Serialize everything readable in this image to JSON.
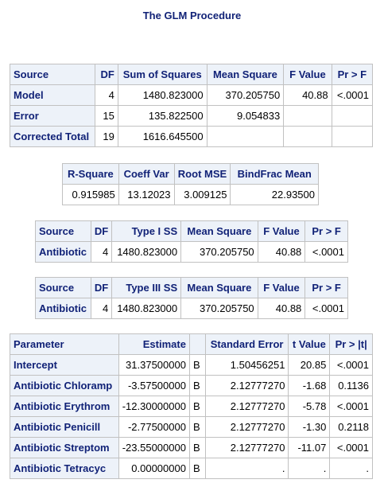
{
  "title": "The GLM Procedure",
  "anova": {
    "headers": [
      "Source",
      "DF",
      "Sum of Squares",
      "Mean Square",
      "F Value",
      "Pr > F"
    ],
    "rows": [
      {
        "source": "Model",
        "df": "4",
        "ss": "1480.823000",
        "ms": "370.205750",
        "f": "40.88",
        "p": "<.0001"
      },
      {
        "source": "Error",
        "df": "15",
        "ss": "135.822500",
        "ms": "9.054833",
        "f": "",
        "p": ""
      },
      {
        "source": "Corrected Total",
        "df": "19",
        "ss": "1616.645500",
        "ms": "",
        "f": "",
        "p": ""
      }
    ]
  },
  "fit": {
    "headers": [
      "R-Square",
      "Coeff Var",
      "Root MSE",
      "BindFrac Mean"
    ],
    "values": [
      "0.915985",
      "13.12023",
      "3.009125",
      "22.93500"
    ]
  },
  "type1": {
    "headers": [
      "Source",
      "DF",
      "Type I SS",
      "Mean Square",
      "F Value",
      "Pr > F"
    ],
    "row": {
      "source": "Antibiotic",
      "df": "4",
      "ss": "1480.823000",
      "ms": "370.205750",
      "f": "40.88",
      "p": "<.0001"
    }
  },
  "type3": {
    "headers": [
      "Source",
      "DF",
      "Type III SS",
      "Mean Square",
      "F Value",
      "Pr > F"
    ],
    "row": {
      "source": "Antibiotic",
      "df": "4",
      "ss": "1480.823000",
      "ms": "370.205750",
      "f": "40.88",
      "p": "<.0001"
    }
  },
  "params": {
    "headers": [
      "Parameter",
      "Estimate",
      "",
      "Standard Error",
      "t Value",
      "Pr > |t|"
    ],
    "rows": [
      {
        "name": "Intercept",
        "est": "31.37500000",
        "flag": "B",
        "se": "1.50456251",
        "t": "20.85",
        "p": "<.0001"
      },
      {
        "name": "Antibiotic Chloramp",
        "est": "-3.57500000",
        "flag": "B",
        "se": "2.12777270",
        "t": "-1.68",
        "p": "0.1136"
      },
      {
        "name": "Antibiotic Erythrom",
        "est": "-12.30000000",
        "flag": "B",
        "se": "2.12777270",
        "t": "-5.78",
        "p": "<.0001"
      },
      {
        "name": "Antibiotic Penicill",
        "est": "-2.77500000",
        "flag": "B",
        "se": "2.12777270",
        "t": "-1.30",
        "p": "0.2118"
      },
      {
        "name": "Antibiotic Streptom",
        "est": "-23.55000000",
        "flag": "B",
        "se": "2.12777270",
        "t": "-11.07",
        "p": "<.0001"
      },
      {
        "name": "Antibiotic Tetracyc",
        "est": "0.00000000",
        "flag": "B",
        "se": ".",
        "t": ".",
        "p": "."
      }
    ]
  }
}
